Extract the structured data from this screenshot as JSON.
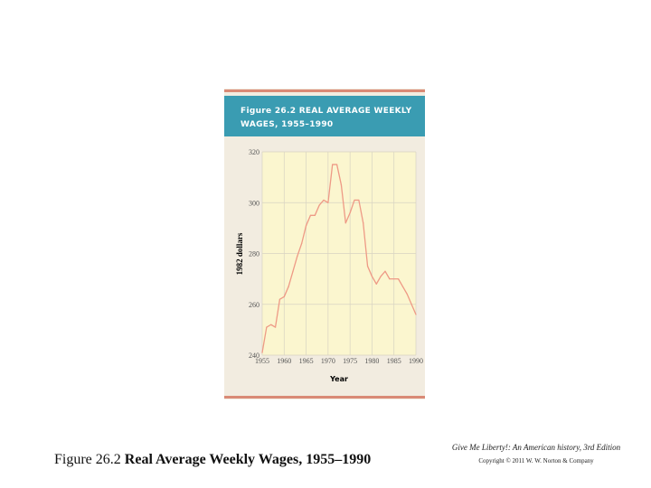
{
  "colors": {
    "card_background": "#f2ece0",
    "plot_background": "#fbf6cf",
    "title_band": "#3a9cb2",
    "accent_stripe": "#d98a76",
    "line": "#ee9a86",
    "grid": "#d8d3c2",
    "axis_text": "#555555"
  },
  "chart_data": {
    "type": "line",
    "title": "Figure 26.2  REAL AVERAGE WEEKLY WAGES, 1955–1990",
    "title_lines": [
      "Figure 26.2  REAL AVERAGE WEEKLY",
      "WAGES, 1955–1990"
    ],
    "xlabel": "Year",
    "ylabel": "1982 dollars",
    "xlim": [
      1955,
      1990
    ],
    "ylim": [
      240,
      320
    ],
    "x_ticks": [
      1955,
      1960,
      1965,
      1970,
      1975,
      1980,
      1985,
      1990
    ],
    "x_tick_labels": [
      "1955",
      "1960",
      "1965",
      "1970",
      "1975",
      "1980",
      "1985",
      "1990"
    ],
    "y_ticks": [
      240,
      260,
      280,
      300,
      320
    ],
    "y_tick_labels": [
      "240",
      "260",
      "280",
      "300",
      "320"
    ],
    "grid": true,
    "series": [
      {
        "x": [
          1955,
          1956,
          1957,
          1958,
          1959,
          1960,
          1961,
          1962,
          1963,
          1964,
          1965,
          1966,
          1967,
          1968,
          1969,
          1970,
          1971,
          1972,
          1973,
          1974,
          1975,
          1976,
          1977,
          1978,
          1979,
          1980,
          1981,
          1982,
          1983,
          1984,
          1985,
          1986,
          1987,
          1988,
          1989,
          1990
        ],
        "values": [
          241,
          251,
          252,
          251,
          262,
          263,
          267,
          273,
          279,
          284,
          291,
          295,
          295,
          299,
          301,
          300,
          315,
          315,
          307,
          292,
          296,
          301,
          301,
          292,
          275,
          271,
          268,
          271,
          273,
          270,
          270,
          270,
          267,
          264,
          260,
          256
        ]
      }
    ]
  },
  "caption": {
    "prefix": "Figure 26.2 ",
    "title": "Real Average Weekly Wages, 1955–1990"
  },
  "credits": {
    "book": "Give Me Liberty!: An American history, 3rd Edition",
    "copyright": "Copyright © 2011  W. W. Norton & Company"
  }
}
